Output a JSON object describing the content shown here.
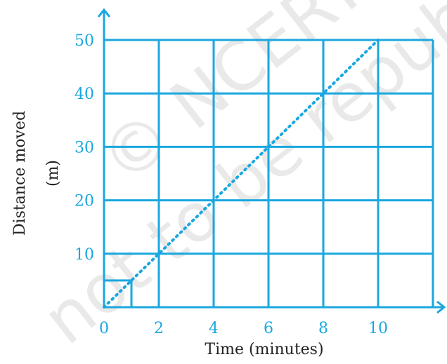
{
  "chart_data": {
    "type": "line",
    "xlabel": "Time (minutes)",
    "ylabel_line1": "Distance moved",
    "ylabel_line2": "(m)",
    "xlim": [
      0,
      12
    ],
    "ylim": [
      0,
      50
    ],
    "xticks": [
      0,
      2,
      4,
      6,
      8,
      10
    ],
    "yticks": [
      10,
      20,
      30,
      40,
      50
    ],
    "grid": true,
    "series": [
      {
        "x": [
          0,
          10
        ],
        "y": [
          0,
          50
        ],
        "style": "dotted"
      }
    ],
    "unit_box": {
      "x": [
        0,
        1
      ],
      "y": [
        0,
        5
      ]
    },
    "color": "#1aa7df"
  },
  "watermark": {
    "line1": "© NCERT",
    "line2": "not to be republished"
  }
}
